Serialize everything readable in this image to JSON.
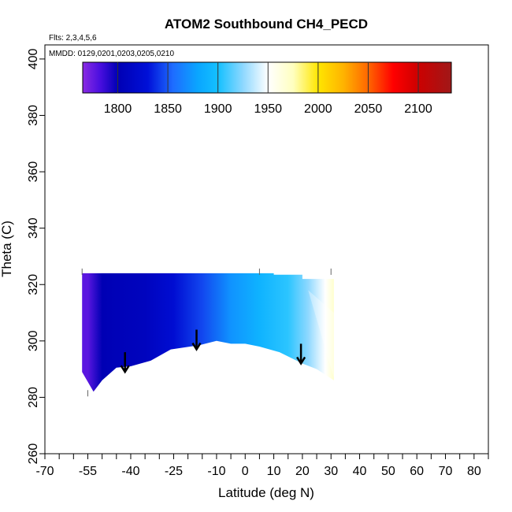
{
  "chart_data": {
    "type": "heatmap",
    "title": "ATOM2 Southbound CH4_PECD",
    "flights_label": "Flts: 2,3,4,5,6",
    "dates_label": "MMDD: 0129,0201,0203,0205,0210",
    "xlabel": "Latitude (deg N)",
    "ylabel": "Theta (C)",
    "xlim": [
      -70,
      85
    ],
    "ylim": [
      260,
      405
    ],
    "x_ticks": [
      -70,
      -55,
      -40,
      -25,
      -10,
      0,
      10,
      20,
      30,
      40,
      50,
      60,
      70,
      80
    ],
    "x_tick_labels": [
      "-70",
      "-55",
      "-40",
      "-25",
      "-10",
      "0",
      "10",
      "20",
      "30",
      "40",
      "50",
      "60",
      "70",
      "80"
    ],
    "x_minor_ticks": [
      -65,
      -60,
      -50,
      -45,
      -35,
      -30,
      -20,
      -15,
      -5,
      5,
      15,
      25,
      35,
      45,
      55,
      65,
      75,
      85
    ],
    "y_ticks": [
      260,
      280,
      300,
      320,
      340,
      360,
      380,
      400
    ],
    "y_tick_labels": [
      "260",
      "280",
      "300",
      "320",
      "340",
      "360",
      "380",
      "400"
    ],
    "colorbar": {
      "range": [
        1765,
        2133
      ],
      "ticks": [
        1800,
        1850,
        1900,
        1950,
        2000,
        2050,
        2100
      ],
      "tick_labels": [
        "1800",
        "1850",
        "1900",
        "1950",
        "2000",
        "2050",
        "2100"
      ],
      "stops": [
        {
          "value": 1765,
          "color": "#8a2be2"
        },
        {
          "value": 1782,
          "color": "#4b0fe0"
        },
        {
          "value": 1800,
          "color": "#0000b4"
        },
        {
          "value": 1830,
          "color": "#0010d8"
        },
        {
          "value": 1855,
          "color": "#1e6cff"
        },
        {
          "value": 1880,
          "color": "#0aa6ff"
        },
        {
          "value": 1900,
          "color": "#14c0ff"
        },
        {
          "value": 1925,
          "color": "#8ed8ff"
        },
        {
          "value": 1950,
          "color": "#ffffff"
        },
        {
          "value": 1975,
          "color": "#ffffc0"
        },
        {
          "value": 2000,
          "color": "#ffe600"
        },
        {
          "value": 2025,
          "color": "#ffb400"
        },
        {
          "value": 2050,
          "color": "#ff6600"
        },
        {
          "value": 2075,
          "color": "#ff0000"
        },
        {
          "value": 2100,
          "color": "#cc0000"
        },
        {
          "value": 2133,
          "color": "#a01818"
        }
      ]
    },
    "region_boundary": {
      "lat_min": -57,
      "lat_max": 31,
      "top_theta": 324,
      "bottom_curve": [
        [
          -57,
          289
        ],
        [
          -53,
          282
        ],
        [
          -50,
          286
        ],
        [
          -45,
          290.5
        ],
        [
          -40,
          291
        ],
        [
          -33,
          293
        ],
        [
          -26,
          297
        ],
        [
          -16,
          298.5
        ],
        [
          -10,
          300
        ],
        [
          -5,
          299
        ],
        [
          0,
          299
        ],
        [
          5,
          298
        ],
        [
          12,
          296
        ],
        [
          20,
          292
        ],
        [
          25,
          290
        ],
        [
          31,
          286
        ]
      ],
      "top_right_steps": [
        [
          10,
          323.5
        ],
        [
          20,
          322
        ],
        [
          31,
          320
        ]
      ]
    },
    "field_samples": [
      {
        "lat": -55,
        "value": 1778
      },
      {
        "lat": -50,
        "value": 1800
      },
      {
        "lat": -45,
        "value": 1803
      },
      {
        "lat": -35,
        "value": 1808
      },
      {
        "lat": -25,
        "value": 1825
      },
      {
        "lat": -15,
        "value": 1845
      },
      {
        "lat": -5,
        "value": 1872
      },
      {
        "lat": 5,
        "value": 1890
      },
      {
        "lat": 15,
        "value": 1905
      },
      {
        "lat": 22,
        "value": 1925
      },
      {
        "lat": 28,
        "value": 1950
      },
      {
        "lat": 31,
        "value": 1970
      }
    ],
    "arrows": [
      {
        "lat": -42,
        "theta_start": 296,
        "theta_end": 289
      },
      {
        "lat": -17,
        "theta_start": 304,
        "theta_end": 297
      },
      {
        "lat": 19.5,
        "theta_start": 299,
        "theta_end": 292
      }
    ],
    "top_ticks_lat": [
      -57,
      5,
      30
    ],
    "bottom_ticks_lat": [
      -55
    ]
  }
}
